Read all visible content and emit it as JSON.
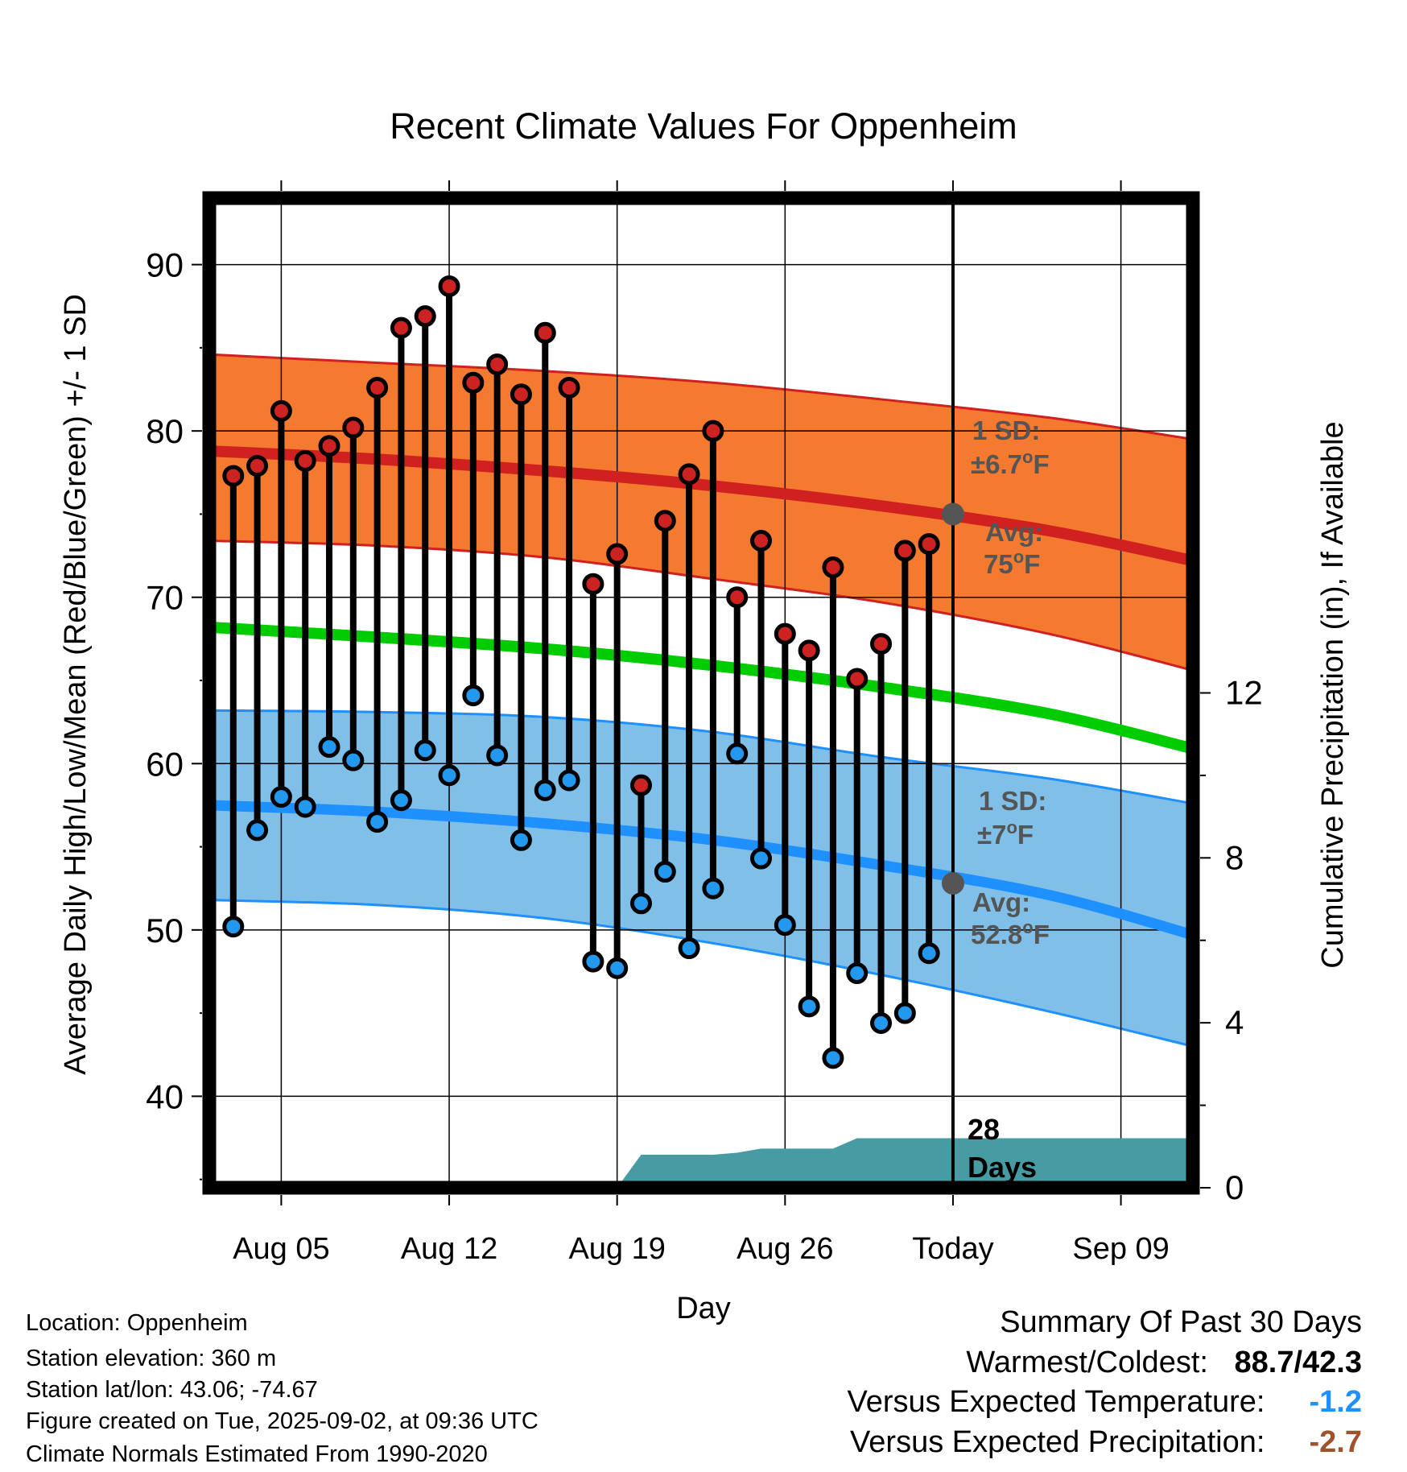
{
  "chart_data": {
    "type": "line",
    "title": "Recent Climate Values For Oppenheim",
    "xlabel": "Day",
    "ylabel_left": "Average Daily High/Low/Mean (Red/Blue/Green) +/- 1 SD",
    "ylabel_right": "Cumulative Precipitation (in), If Available",
    "ylim_left": [
      34.5,
      94
    ],
    "ylim_right": [
      0,
      24
    ],
    "yticks_left": [
      40,
      50,
      60,
      70,
      80,
      90
    ],
    "yticks_right": [
      0,
      4,
      8,
      12
    ],
    "xlim": [
      "2025-08-02",
      "2025-09-12"
    ],
    "xticks": [
      {
        "date": "2025-08-05",
        "label": "Aug 05"
      },
      {
        "date": "2025-08-12",
        "label": "Aug 12"
      },
      {
        "date": "2025-08-19",
        "label": "Aug 19"
      },
      {
        "date": "2025-08-26",
        "label": "Aug 26"
      },
      {
        "date": "2025-09-02",
        "label": "Today"
      },
      {
        "date": "2025-09-09",
        "label": "Sep 09"
      }
    ],
    "grid": true,
    "today": "2025-09-02",
    "today_label": [
      "28",
      "Days"
    ],
    "normals": {
      "dates": [
        "2025-08-02",
        "2025-08-09",
        "2025-08-16",
        "2025-08-23",
        "2025-08-30",
        "2025-09-06",
        "2025-09-12"
      ],
      "high_avg": [
        78.8,
        78.3,
        77.6,
        76.7,
        75.5,
        74.0,
        72.2
      ],
      "high_sd_upper": [
        84.6,
        84.1,
        83.6,
        82.9,
        81.9,
        80.8,
        79.5
      ],
      "high_sd_lower": [
        73.4,
        73.1,
        72.4,
        71.1,
        69.7,
        67.8,
        65.6
      ],
      "low_avg": [
        57.5,
        57.1,
        56.4,
        55.4,
        53.9,
        52.1,
        49.7
      ],
      "low_sd_upper": [
        63.2,
        63.1,
        62.8,
        61.9,
        60.4,
        59.1,
        57.6
      ],
      "low_sd_lower": [
        51.8,
        51.5,
        50.7,
        49.2,
        47.3,
        45.1,
        43.0
      ],
      "mean_avg": [
        68.2,
        67.6,
        66.9,
        65.9,
        64.6,
        63.0,
        60.9
      ]
    },
    "annotations": [
      {
        "series": "high",
        "sd_line1": "1 SD:",
        "sd_line2_prefix": "±6.7",
        "avg_line1": "Avg:",
        "avg_line2_prefix": "75",
        "unit_o": "o",
        "unit_f": "F",
        "avg_value": 75.0
      },
      {
        "series": "low",
        "sd_line1": "1 SD:",
        "sd_line2_prefix": "±7",
        "avg_line1": "Avg:",
        "avg_line2_prefix": "52.8",
        "unit_o": "o",
        "unit_f": "F",
        "avg_value": 52.8
      }
    ],
    "observed": {
      "dates": [
        "2025-08-03",
        "2025-08-04",
        "2025-08-05",
        "2025-08-06",
        "2025-08-07",
        "2025-08-08",
        "2025-08-09",
        "2025-08-10",
        "2025-08-11",
        "2025-08-12",
        "2025-08-13",
        "2025-08-14",
        "2025-08-15",
        "2025-08-16",
        "2025-08-17",
        "2025-08-18",
        "2025-08-19",
        "2025-08-20",
        "2025-08-21",
        "2025-08-22",
        "2025-08-23",
        "2025-08-24",
        "2025-08-25",
        "2025-08-26",
        "2025-08-27",
        "2025-08-28",
        "2025-08-29",
        "2025-08-30",
        "2025-08-31",
        "2025-09-01"
      ],
      "high": [
        77.3,
        77.9,
        81.2,
        78.2,
        79.1,
        80.2,
        82.6,
        86.2,
        86.9,
        88.7,
        82.9,
        84.0,
        82.2,
        85.9,
        82.6,
        70.8,
        72.6,
        58.7,
        74.6,
        77.4,
        80.0,
        70.0,
        73.4,
        67.8,
        66.8,
        71.8,
        65.1,
        67.2,
        72.8,
        73.2
      ],
      "low": [
        50.2,
        56.0,
        58.0,
        57.4,
        61.0,
        60.2,
        56.5,
        57.8,
        60.8,
        59.3,
        64.1,
        60.5,
        55.4,
        58.4,
        59.0,
        48.1,
        47.7,
        51.6,
        53.5,
        48.9,
        52.5,
        60.6,
        54.3,
        50.3,
        45.4,
        42.3,
        47.4,
        44.4,
        45.0,
        48.6
      ]
    },
    "precipitation": {
      "dates": [
        "2025-08-19",
        "2025-08-20",
        "2025-08-21",
        "2025-08-22",
        "2025-08-23",
        "2025-08-24",
        "2025-08-25",
        "2025-08-26",
        "2025-08-27",
        "2025-08-28",
        "2025-08-29",
        "2025-08-30",
        "2025-08-31",
        "2025-09-01",
        "2025-09-02",
        "2025-09-12"
      ],
      "cumulative_in": [
        0.0,
        0.8,
        0.8,
        0.8,
        0.8,
        0.85,
        0.95,
        0.95,
        0.95,
        0.95,
        1.2,
        1.2,
        1.2,
        1.2,
        1.2,
        1.2
      ]
    }
  },
  "info": {
    "location": "Location: Oppenheim",
    "elevation": "Station elevation: 360 m",
    "latlon": "Station lat/lon: 43.06; -74.67",
    "created": "Figure created on Tue, 2025-09-02, at 09:36 UTC",
    "normals": "Climate Normals Estimated From 1990-2020"
  },
  "summary": {
    "title": "Summary Of Past 30 Days",
    "warmest_label": "Warmest/Coldest:",
    "warmest_value": "88.7/42.3",
    "temp_label": "Versus Expected Temperature:",
    "temp_value": "-1.2",
    "temp_color": "#1e90ff",
    "precip_label": "Versus Expected Precipitation:",
    "precip_value": "-2.7",
    "precip_color": "#a0522d"
  },
  "colors": {
    "high_band": "#f47a30",
    "high_line": "#d02020",
    "low_band": "#80bfe8",
    "low_line": "#1e90ff",
    "mean_line": "#00cc00",
    "precip_fill": "#479ca4",
    "high_marker": "#cc2222",
    "low_marker": "#2299ee",
    "annotation_text": "#555555"
  }
}
